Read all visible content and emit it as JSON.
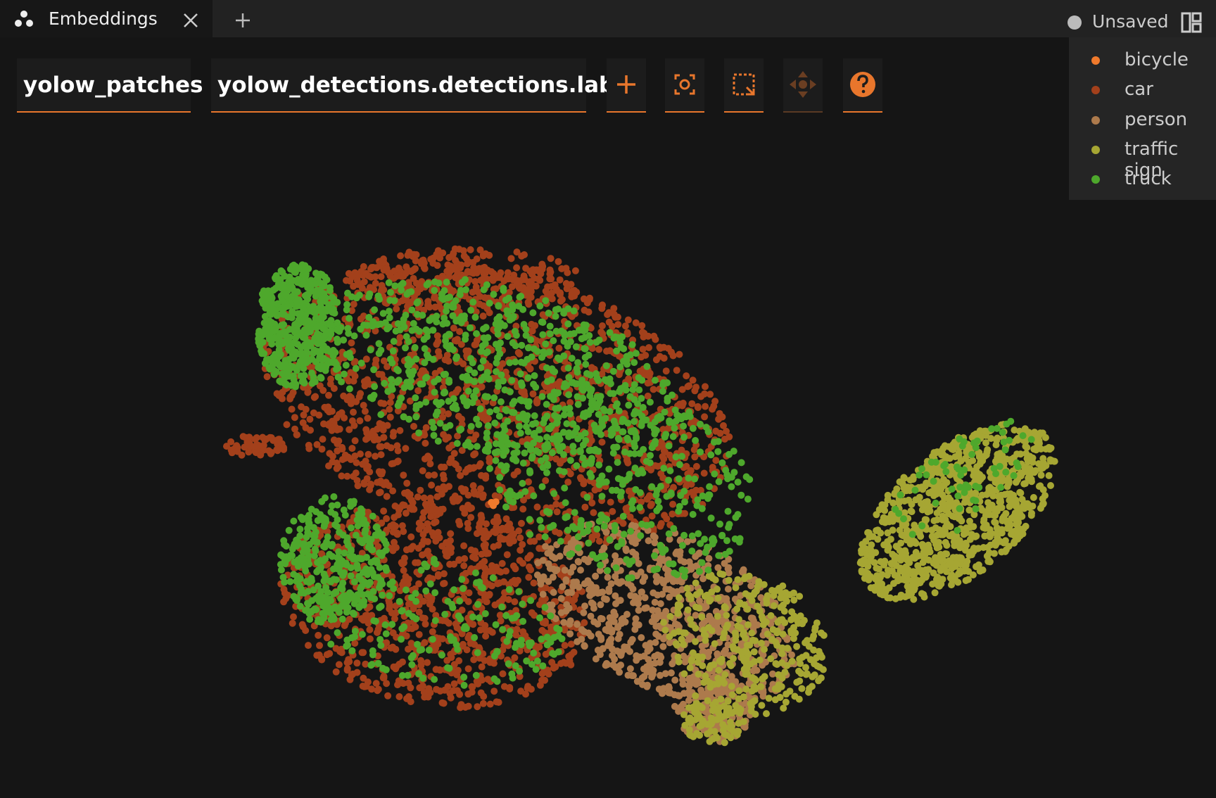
{
  "tab": {
    "title": "Embeddings"
  },
  "status": "Unsaved",
  "toolbar": {
    "brain_key": "yolow_patches",
    "color_by": "yolow_detections.detections.label"
  },
  "legend": [
    {
      "label": "bicycle",
      "color": "#f07a2c"
    },
    {
      "label": "car",
      "color": "#a3401b"
    },
    {
      "label": "person",
      "color": "#ad7a4c"
    },
    {
      "label": "traffic sign",
      "color": "#a6a633"
    },
    {
      "label": "truck",
      "color": "#4ea82c"
    }
  ]
}
